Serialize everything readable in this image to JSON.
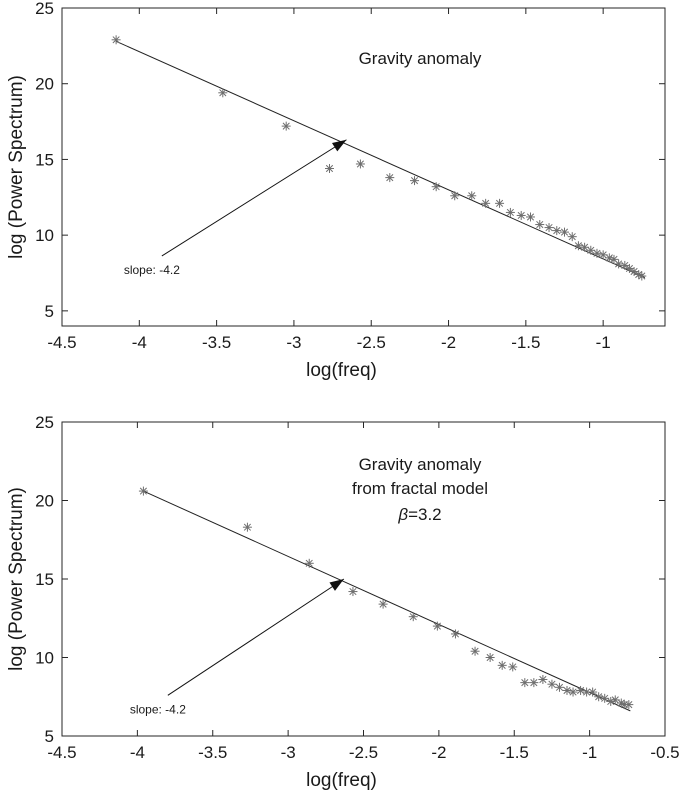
{
  "chart_data": [
    {
      "type": "scatter",
      "xlabel": "log(freq)",
      "ylabel": "log (Power Spectrum)",
      "xlim": [
        -4.5,
        -0.6
      ],
      "ylim": [
        4,
        25
      ],
      "xticks": [
        -4.5,
        -4,
        -3.5,
        -3,
        -2.5,
        -2,
        -1.5,
        -1
      ],
      "xtick_labels": [
        "-4.5",
        "-4",
        "-3.5",
        "-3",
        "-2.5",
        "-2",
        "-1.5",
        "-1"
      ],
      "yticks": [
        5,
        10,
        15,
        20,
        25
      ],
      "ytick_labels": [
        "5",
        "10",
        "15",
        "20",
        "25"
      ],
      "title_lines": [
        "Gravity anomaly"
      ],
      "grid": false,
      "marker": "asterisk",
      "points": {
        "x": [
          -4.15,
          -3.46,
          -3.05,
          -2.77,
          -2.57,
          -2.38,
          -2.22,
          -2.08,
          -1.96,
          -1.85,
          -1.76,
          -1.67,
          -1.6,
          -1.53,
          -1.47,
          -1.41,
          -1.35,
          -1.3,
          -1.25,
          -1.2,
          -1.16,
          -1.12,
          -1.08,
          -1.04,
          -1.0,
          -0.96,
          -0.93,
          -0.9,
          -0.86,
          -0.83,
          -0.8,
          -0.77,
          -0.75
        ],
        "y": [
          22.9,
          19.4,
          17.2,
          14.4,
          14.7,
          13.8,
          13.6,
          13.2,
          12.6,
          12.6,
          12.1,
          12.1,
          11.5,
          11.3,
          11.2,
          10.7,
          10.5,
          10.3,
          10.2,
          9.9,
          9.3,
          9.2,
          9.0,
          8.8,
          8.7,
          8.5,
          8.4,
          8.1,
          8.0,
          7.8,
          7.6,
          7.4,
          7.3
        ]
      },
      "fit_line": {
        "slope": -4.2,
        "x": [
          -4.15,
          -0.73
        ],
        "y": [
          22.8,
          7.2
        ]
      },
      "annotation": {
        "text": "slope: -4.2",
        "at": [
          -4.1,
          7.7
        ],
        "arrow_to": [
          -2.66,
          16.3
        ]
      }
    },
    {
      "type": "scatter",
      "xlabel": "log(freq)",
      "ylabel": "log (Power Spectrum)",
      "xlim": [
        -4.5,
        -0.5
      ],
      "ylim": [
        5,
        25
      ],
      "xticks": [
        -4.5,
        -4,
        -3.5,
        -3,
        -2.5,
        -2,
        -1.5,
        -1,
        -0.5
      ],
      "xtick_labels": [
        "-4.5",
        "-4",
        "-3.5",
        "-3",
        "-2.5",
        "-2",
        "-1.5",
        "-1",
        "-0.5"
      ],
      "yticks": [
        5,
        10,
        15,
        20,
        25
      ],
      "ytick_labels": [
        "5",
        "10",
        "15",
        "20",
        "25"
      ],
      "title_lines": [
        "Gravity anomaly",
        "from fractal model"
      ],
      "title_beta_symbol": "β",
      "title_beta_value": "=3.2",
      "grid": false,
      "marker": "asterisk",
      "points": {
        "x": [
          -3.96,
          -3.27,
          -2.86,
          -2.57,
          -2.37,
          -2.17,
          -2.01,
          -1.89,
          -1.76,
          -1.66,
          -1.58,
          -1.51,
          -1.43,
          -1.37,
          -1.31,
          -1.25,
          -1.2,
          -1.15,
          -1.11,
          -1.06,
          -1.02,
          -0.98,
          -0.94,
          -0.9,
          -0.86,
          -0.83,
          -0.79,
          -0.77,
          -0.74
        ],
        "y": [
          20.6,
          18.3,
          16.0,
          14.2,
          13.4,
          12.6,
          12.0,
          11.5,
          10.4,
          10.0,
          9.5,
          9.4,
          8.4,
          8.4,
          8.6,
          8.3,
          8.1,
          7.9,
          7.8,
          7.9,
          7.8,
          7.8,
          7.5,
          7.4,
          7.2,
          7.3,
          7.1,
          7.0,
          7.0
        ]
      },
      "fit_line": {
        "slope": -4.2,
        "x": [
          -3.96,
          -0.73
        ],
        "y": [
          20.6,
          6.6
        ]
      },
      "annotation": {
        "text": "slope: -4.2",
        "at": [
          -4.05,
          6.7
        ],
        "arrow_to": [
          -2.63,
          15.0
        ]
      }
    }
  ]
}
